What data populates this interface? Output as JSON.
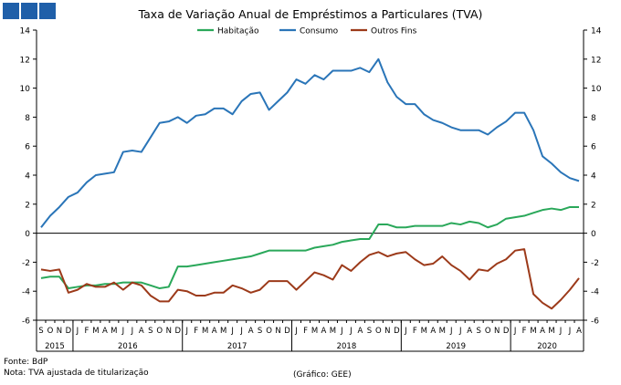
{
  "header_squares": [
    "square",
    "square",
    "square"
  ],
  "footer": {
    "source": "Fonte: BdP",
    "note": "Nota: TVA ajustada de titularização",
    "credit": "(Gráfico: GEE)"
  },
  "colors": {
    "Habitação": "#2aa85a",
    "Consumo": "#2a75b8",
    "Outros Fins": "#9c3a1a",
    "header": "#1f5fa9"
  },
  "chart_data": {
    "type": "line",
    "title": "Taxa de Variação Anual de Empréstimos a Particulares (TVA)",
    "xlabel": "",
    "ylabel": "",
    "ylim": [
      -6,
      14
    ],
    "yticks": [
      -6,
      -4,
      -2,
      0,
      2,
      4,
      6,
      8,
      10,
      12,
      14
    ],
    "legend_position": "top-center",
    "grid": false,
    "x": [
      "2015-09",
      "2015-10",
      "2015-11",
      "2015-12",
      "2016-01",
      "2016-02",
      "2016-03",
      "2016-04",
      "2016-05",
      "2016-06",
      "2016-07",
      "2016-08",
      "2016-09",
      "2016-10",
      "2016-11",
      "2016-12",
      "2017-01",
      "2017-02",
      "2017-03",
      "2017-04",
      "2017-05",
      "2017-06",
      "2017-07",
      "2017-08",
      "2017-09",
      "2017-10",
      "2017-11",
      "2017-12",
      "2018-01",
      "2018-02",
      "2018-03",
      "2018-04",
      "2018-05",
      "2018-06",
      "2018-07",
      "2018-08",
      "2018-09",
      "2018-10",
      "2018-11",
      "2018-12",
      "2019-01",
      "2019-02",
      "2019-03",
      "2019-04",
      "2019-05",
      "2019-06",
      "2019-07",
      "2019-08",
      "2019-09",
      "2019-10",
      "2019-11",
      "2019-12",
      "2020-01",
      "2020-02",
      "2020-03",
      "2020-04",
      "2020-05",
      "2020-06",
      "2020-07",
      "2020-08"
    ],
    "month_labels": [
      "S",
      "O",
      "N",
      "D",
      "J",
      "F",
      "M",
      "A",
      "M",
      "J",
      "J",
      "A",
      "S",
      "O",
      "N",
      "D",
      "J",
      "F",
      "M",
      "A",
      "M",
      "J",
      "J",
      "A",
      "S",
      "O",
      "N",
      "D",
      "J",
      "F",
      "M",
      "A",
      "M",
      "J",
      "J",
      "A",
      "S",
      "O",
      "N",
      "D",
      "J",
      "F",
      "M",
      "A",
      "M",
      "J",
      "J",
      "A",
      "S",
      "O",
      "N",
      "D",
      "J",
      "F",
      "M",
      "A",
      "M",
      "J",
      "J",
      "A"
    ],
    "year_groups": [
      {
        "label": "2015",
        "start": 0,
        "end": 3
      },
      {
        "label": "2016",
        "start": 4,
        "end": 15
      },
      {
        "label": "2017",
        "start": 16,
        "end": 27
      },
      {
        "label": "2018",
        "start": 28,
        "end": 39
      },
      {
        "label": "2019",
        "start": 40,
        "end": 51
      },
      {
        "label": "2020",
        "start": 52,
        "end": 59
      }
    ],
    "series": [
      {
        "name": "Habitação",
        "values": [
          -3.1,
          -3.0,
          -3.0,
          -3.8,
          -3.7,
          -3.6,
          -3.6,
          -3.5,
          -3.5,
          -3.4,
          -3.4,
          -3.4,
          -3.6,
          -3.8,
          -3.7,
          -2.3,
          -2.3,
          -2.2,
          -2.1,
          -2.0,
          -1.9,
          -1.8,
          -1.7,
          -1.6,
          -1.4,
          -1.2,
          -1.2,
          -1.2,
          -1.2,
          -1.2,
          -1.0,
          -0.9,
          -0.8,
          -0.6,
          -0.5,
          -0.4,
          -0.4,
          0.6,
          0.6,
          0.4,
          0.4,
          0.5,
          0.5,
          0.5,
          0.5,
          0.7,
          0.6,
          0.8,
          0.7,
          0.4,
          0.6,
          1.0,
          1.1,
          1.2,
          1.4,
          1.6,
          1.7,
          1.6,
          1.8,
          1.8
        ]
      },
      {
        "name": "Consumo",
        "values": [
          0.4,
          1.2,
          1.8,
          2.5,
          2.8,
          3.5,
          4.0,
          4.1,
          4.2,
          5.6,
          5.7,
          5.6,
          6.6,
          7.6,
          7.7,
          8.0,
          7.6,
          8.1,
          8.2,
          8.6,
          8.6,
          8.2,
          9.1,
          9.6,
          9.7,
          8.5,
          9.1,
          9.7,
          10.6,
          10.3,
          10.9,
          10.6,
          11.2,
          11.2,
          11.2,
          11.4,
          11.1,
          12.0,
          10.4,
          9.4,
          8.9,
          8.9,
          8.2,
          7.8,
          7.6,
          7.3,
          7.1,
          7.1,
          7.1,
          6.8,
          7.3,
          7.7,
          8.3,
          8.3,
          7.1,
          5.3,
          4.8,
          4.2,
          3.8,
          3.6
        ]
      },
      {
        "name": "Outros Fins",
        "values": [
          -2.5,
          -2.6,
          -2.5,
          -4.1,
          -3.9,
          -3.5,
          -3.7,
          -3.7,
          -3.4,
          -3.9,
          -3.4,
          -3.6,
          -4.3,
          -4.7,
          -4.7,
          -3.9,
          -4.0,
          -4.3,
          -4.3,
          -4.1,
          -4.1,
          -3.6,
          -3.8,
          -4.1,
          -3.9,
          -3.3,
          -3.3,
          -3.3,
          -3.9,
          -3.3,
          -2.7,
          -2.9,
          -3.2,
          -2.2,
          -2.6,
          -2.0,
          -1.5,
          -1.3,
          -1.6,
          -1.4,
          -1.3,
          -1.8,
          -2.2,
          -2.1,
          -1.6,
          -2.2,
          -2.6,
          -3.2,
          -2.5,
          -2.6,
          -2.1,
          -1.8,
          -1.2,
          -1.1,
          -4.2,
          -4.8,
          -5.2,
          -4.6,
          -3.9,
          -3.1
        ]
      }
    ]
  }
}
